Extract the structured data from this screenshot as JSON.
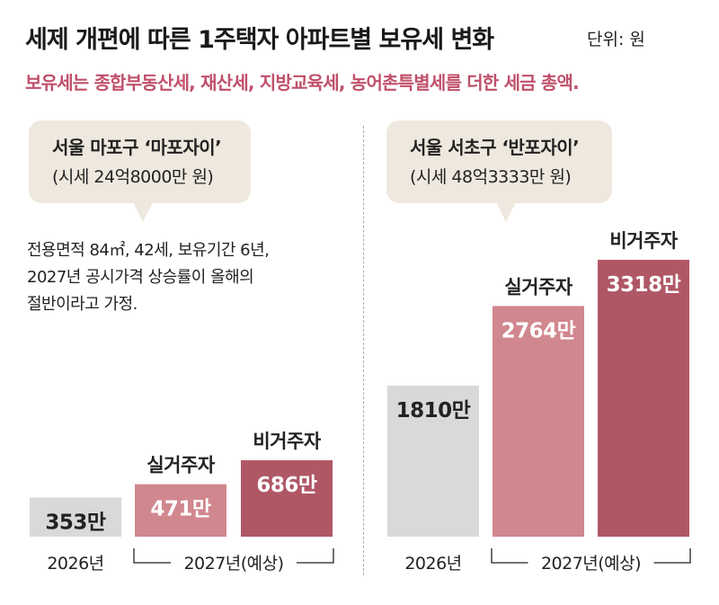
{
  "header": {
    "title": "세제 개편에 따른 1주택자 아파트별 보유세 변화",
    "unit": "단위: 원",
    "subtitle": "보유세는 종합부동산세, 재산세, 지방교육세, 농어촌특별세를 더한 세금 총액."
  },
  "left": {
    "bubble_line1": "서울 마포구 ‘마포자이’",
    "bubble_line2": "(시세 24억8000만 원)",
    "note": [
      "전용면적 84㎡, 42세, 보유기간 6년,",
      "2027년 공시가격 상승률이 올해의",
      "절반이라고 가정."
    ]
  },
  "right": {
    "bubble_line1": "서울 서초구 ‘반포자이’",
    "bubble_line2": "(시세 48억3333만 원)"
  },
  "colors": {
    "baseline": "#d9d9d9",
    "resident": "#d1878e",
    "non_resident": "#b05766",
    "label_dark": "#222222",
    "label_light": "#ffffff",
    "subtitle": "#c0506a",
    "divider": "#aaaaaa"
  },
  "chart_data": [
    {
      "type": "bar",
      "apartment": "서울 마포구 ‘마포자이’",
      "categories": [
        "2026년",
        "실거주자",
        "비거주자"
      ],
      "values": [
        353,
        471,
        686
      ],
      "value_labels": [
        "353만",
        "471만",
        "686만"
      ],
      "category_labels_above": [
        "",
        "실거주자",
        "비거주자"
      ],
      "x_labels": [
        "2026년",
        "2027년(예상)"
      ],
      "x_label_groups": [
        [
          0
        ],
        [
          1,
          2
        ]
      ]
    },
    {
      "type": "bar",
      "apartment": "서울 서초구 ‘반포자이’",
      "categories": [
        "2026년",
        "실거주자",
        "비거주자"
      ],
      "values": [
        1810,
        2764,
        3318
      ],
      "value_labels": [
        "1810만",
        "2764만",
        "3318만"
      ],
      "category_labels_above": [
        "",
        "실거주자",
        "비거주자"
      ],
      "x_labels": [
        "2026년",
        "2027년(예상)"
      ],
      "x_label_groups": [
        [
          0
        ],
        [
          1,
          2
        ]
      ]
    }
  ]
}
